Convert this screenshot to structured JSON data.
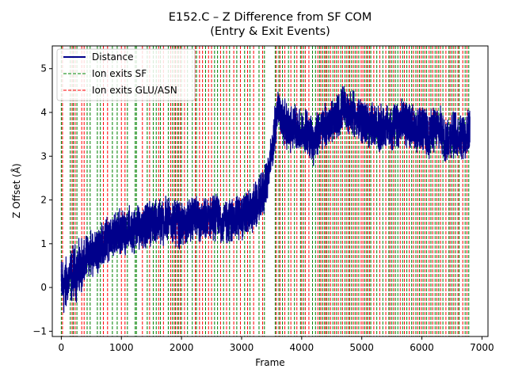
{
  "chart_data": {
    "type": "line",
    "title": "E152.C – Z Difference from SF COM",
    "subtitle": "(Entry & Exit Events)",
    "xlabel": "Frame",
    "ylabel": "Z Offset (Å)",
    "xlim": [
      -150,
      7100
    ],
    "ylim": [
      -1.12,
      5.52
    ],
    "xticks": [
      0,
      1000,
      2000,
      3000,
      4000,
      5000,
      6000,
      7000
    ],
    "yticks": [
      -1,
      0,
      1,
      2,
      3,
      4,
      5
    ],
    "grid": false,
    "legend_position": "top-left",
    "legend": [
      {
        "label": "Distance",
        "style": "line",
        "color": "#00008b"
      },
      {
        "label": "Ion exits SF",
        "style": "dashed",
        "color": "#008000"
      },
      {
        "label": "Ion exits GLU/ASN",
        "style": "dashed",
        "color": "#ff0000"
      }
    ],
    "series": [
      {
        "name": "Distance",
        "color": "#00008b",
        "trend": {
          "x": [
            0,
            100,
            200,
            300,
            400,
            500,
            600,
            700,
            800,
            900,
            1000,
            1100,
            1200,
            1300,
            1400,
            1500,
            1600,
            1700,
            1800,
            1900,
            2000,
            2100,
            2200,
            2300,
            2400,
            2500,
            2600,
            2700,
            2800,
            2900,
            3000,
            3100,
            3200,
            3300,
            3400,
            3500,
            3550,
            3600,
            3700,
            3800,
            3900,
            4000,
            4100,
            4200,
            4300,
            4400,
            4500,
            4600,
            4700,
            4800,
            4900,
            5000,
            5100,
            5200,
            5300,
            5400,
            5500,
            5600,
            5700,
            5800,
            5900,
            6000,
            6100,
            6200,
            6300,
            6400,
            6500,
            6600,
            6700,
            6800
          ],
          "y": [
            0.0,
            0.1,
            0.3,
            0.4,
            0.6,
            0.8,
            0.9,
            1.0,
            1.1,
            1.2,
            1.3,
            1.3,
            1.3,
            1.4,
            1.4,
            1.5,
            1.5,
            1.5,
            1.6,
            1.5,
            1.4,
            1.5,
            1.6,
            1.5,
            1.5,
            1.6,
            1.6,
            1.5,
            1.5,
            1.6,
            1.6,
            1.7,
            1.8,
            2.0,
            2.3,
            3.0,
            3.6,
            4.1,
            3.8,
            3.6,
            3.7,
            3.5,
            3.6,
            3.3,
            3.6,
            3.7,
            3.8,
            3.9,
            4.1,
            4.0,
            3.9,
            3.8,
            3.7,
            3.7,
            3.6,
            3.7,
            3.6,
            3.7,
            3.8,
            3.7,
            3.6,
            3.6,
            3.5,
            3.6,
            3.6,
            3.4,
            3.5,
            3.5,
            3.5,
            3.5
          ]
        },
        "noise_amplitude": 0.45,
        "frames": [
          0,
          6800
        ]
      }
    ],
    "event_lines": {
      "ion_exits_sf": {
        "color": "#008000",
        "frames": [
          0,
          150,
          200,
          260,
          430,
          480,
          600,
          650,
          850,
          930,
          1100,
          1230,
          1250,
          1430,
          1530,
          1580,
          1650,
          1780,
          1850,
          1900,
          1950,
          2000,
          2100,
          2180,
          2250,
          2400,
          2550,
          2600,
          2700,
          2800,
          2920,
          3050,
          3140,
          3290,
          3380,
          3560,
          3620,
          3680,
          3780,
          3880,
          3980,
          4030,
          4180,
          4230,
          4300,
          4350,
          4400,
          4450,
          4520,
          4580,
          4650,
          4720,
          4780,
          4830,
          4890,
          4950,
          5050,
          5100,
          5150,
          5250,
          5350,
          5450,
          5500,
          5560,
          5600,
          5680,
          5750,
          5830,
          5900,
          5960,
          6020,
          6080,
          6150,
          6220,
          6280,
          6350,
          6450,
          6500,
          6560,
          6620,
          6720,
          6780
        ]
      },
      "ion_exits_glu_asn": {
        "color": "#ff0000",
        "frames": [
          20,
          180,
          230,
          340,
          380,
          700,
          770,
          1000,
          1060,
          1350,
          1470,
          1620,
          1700,
          1820,
          1880,
          1930,
          1980,
          2050,
          2230,
          2300,
          2350,
          2450,
          2500,
          2650,
          2750,
          2870,
          2980,
          3100,
          3200,
          3350,
          3580,
          3640,
          3720,
          3820,
          3920,
          4000,
          4060,
          4120,
          4270,
          4320,
          4380,
          4420,
          4480,
          4550,
          4610,
          4680,
          4750,
          4800,
          4860,
          4920,
          4990,
          5020,
          5080,
          5130,
          5200,
          5300,
          5400,
          5470,
          5530,
          5640,
          5710,
          5790,
          5860,
          5930,
          5990,
          6050,
          6120,
          6180,
          6250,
          6310,
          6400,
          6470,
          6530,
          6600,
          6680,
          6750
        ]
      }
    }
  }
}
